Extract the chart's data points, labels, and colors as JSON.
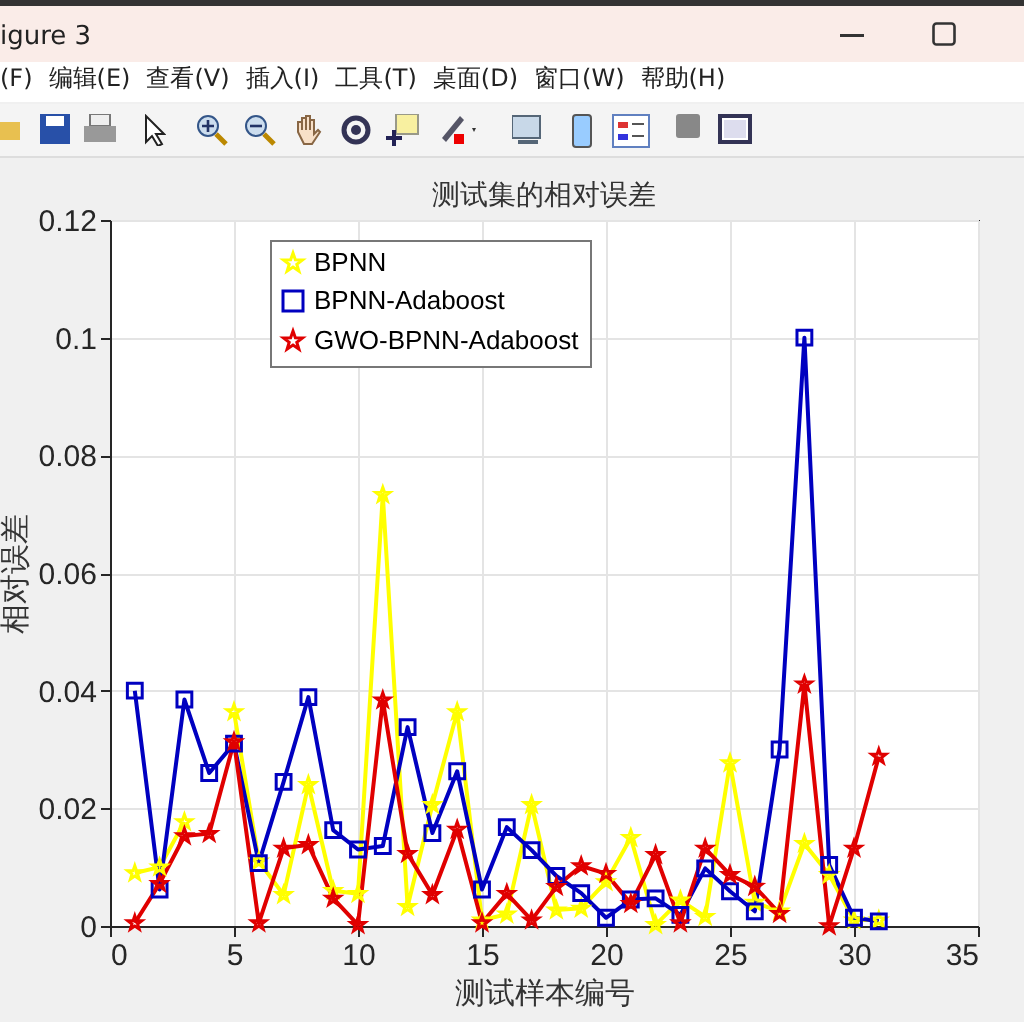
{
  "chart_data": {
    "type": "line",
    "title": "测试集的相对误差",
    "xlabel": "测试样本编号",
    "ylabel": "相对误差",
    "annotations": [
      "igure 3",
      "(F)",
      "编辑(E)",
      "查看(V)",
      "插入(I)",
      "工具(T)",
      "桌面(D)",
      "窗口(W)",
      "帮助(H)"
    ],
    "x": [
      1,
      2,
      3,
      4,
      5,
      6,
      7,
      8,
      9,
      10,
      11,
      12,
      13,
      14,
      15,
      16,
      17,
      18,
      19,
      20,
      21,
      22,
      23,
      24,
      25,
      26,
      27,
      28,
      29,
      30,
      31
    ],
    "series": [
      {
        "name": "BPNN",
        "color": "#ffff00",
        "marker": "star",
        "values": [
          0.009,
          0.01,
          0.0177,
          null,
          0.0364,
          0.011,
          0.0053,
          0.024,
          0.006,
          0.0055,
          0.0733,
          0.0033,
          0.0206,
          0.0364,
          0.001,
          0.002,
          0.0206,
          0.0027,
          0.003,
          0.0075,
          0.015,
          0.0002,
          0.0044,
          0.0016,
          0.0277,
          0.004,
          0.0025,
          0.014,
          0.0087,
          0.001,
          0.001
        ]
      },
      {
        "name": "BPNN-Adaboost",
        "color": "#0000c0",
        "marker": "square",
        "values": [
          0.04,
          0.0062,
          0.0385,
          0.026,
          0.031,
          0.0107,
          0.0245,
          0.0389,
          0.0163,
          0.013,
          0.0136,
          0.0338,
          0.0158,
          0.0263,
          0.0062,
          0.0168,
          0.0129,
          0.0085,
          0.0056,
          0.0014,
          0.0045,
          0.0047,
          0.0019,
          0.0098,
          0.0059,
          0.0025,
          0.03,
          0.1,
          0.0104,
          0.0014,
          0.0008
        ]
      },
      {
        "name": "GWO-BPNN-Adaboost",
        "color": "#e00000",
        "marker": "star",
        "values": [
          0.0005,
          0.0072,
          0.0153,
          0.0157,
          0.0313,
          0.0005,
          0.0132,
          0.0138,
          0.0047,
          0.0002,
          0.0384,
          0.0123,
          0.0053,
          0.0164,
          0.0005,
          0.0055,
          0.001,
          0.0067,
          0.0102,
          0.0089,
          0.0038,
          0.0121,
          0.0005,
          0.0132,
          0.0087,
          0.0067,
          0.0021,
          0.0411,
          0,
          0.0132,
          0.0288
        ]
      }
    ],
    "xlim": [
      0,
      35
    ],
    "xticks": [
      0,
      5,
      10,
      15,
      20,
      25,
      30,
      35
    ],
    "ylim": [
      0,
      0.12
    ],
    "yticks": [
      0,
      0.02,
      0.04,
      0.06,
      0.08,
      0.1,
      0.12
    ],
    "grid": true,
    "legend": "top left",
    "line_style": "solid"
  }
}
